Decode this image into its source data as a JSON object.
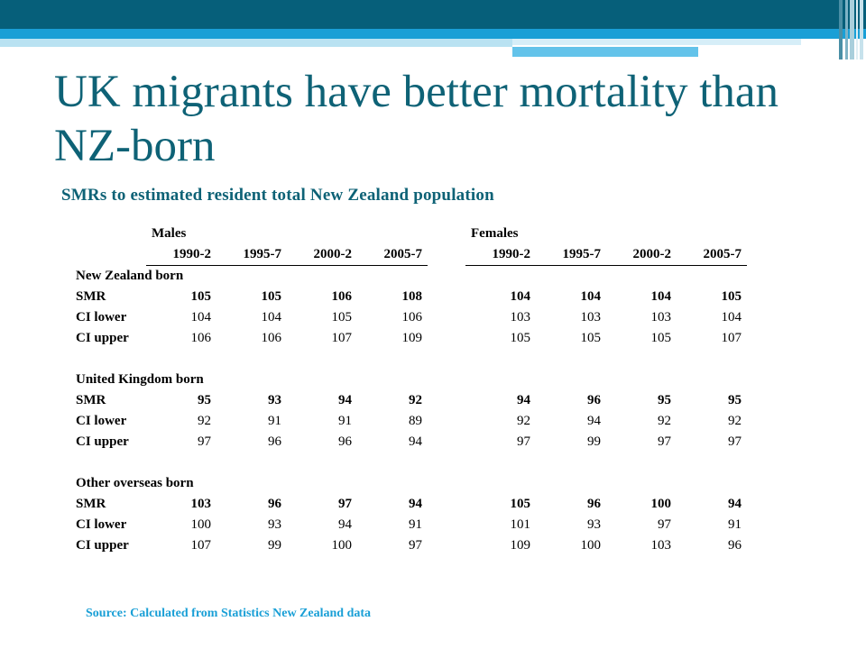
{
  "title": "UK migrants have better mortality than NZ-born",
  "subtitle": "SMRs to estimated resident total New Zealand population",
  "source": "Source: Calculated from Statistics New Zealand data",
  "table": {
    "groups": [
      "Males",
      "Females"
    ],
    "periods": [
      "1990-2",
      "1995-7",
      "2000-2",
      "2005-7"
    ],
    "sections": [
      {
        "name": "New Zealand born",
        "rows": [
          {
            "label": "SMR",
            "males": [
              "105",
              "105",
              "106",
              "108"
            ],
            "females": [
              "104",
              "104",
              "104",
              "105"
            ]
          },
          {
            "label": "CI lower",
            "males": [
              "104",
              "104",
              "105",
              "106"
            ],
            "females": [
              "103",
              "103",
              "103",
              "104"
            ]
          },
          {
            "label": "CI upper",
            "males": [
              "106",
              "106",
              "107",
              "109"
            ],
            "females": [
              "105",
              "105",
              "105",
              "107"
            ]
          }
        ]
      },
      {
        "name": "United Kingdom born",
        "rows": [
          {
            "label": "SMR",
            "males": [
              "95",
              "93",
              "94",
              "92"
            ],
            "females": [
              "94",
              "96",
              "95",
              "95"
            ]
          },
          {
            "label": "CI lower",
            "males": [
              "92",
              "91",
              "91",
              "89"
            ],
            "females": [
              "92",
              "94",
              "92",
              "92"
            ]
          },
          {
            "label": "CI upper",
            "males": [
              "97",
              "96",
              "96",
              "94"
            ],
            "females": [
              "97",
              "99",
              "97",
              "97"
            ]
          }
        ]
      },
      {
        "name": "Other overseas born",
        "rows": [
          {
            "label": "SMR",
            "males": [
              "103",
              "96",
              "97",
              "94"
            ],
            "females": [
              "105",
              "96",
              "100",
              "94"
            ]
          },
          {
            "label": "CI lower",
            "males": [
              "100",
              "93",
              "94",
              "91"
            ],
            "females": [
              "101",
              "93",
              "97",
              "91"
            ]
          },
          {
            "label": "CI upper",
            "males": [
              "107",
              "99",
              "100",
              "97"
            ],
            "females": [
              "109",
              "100",
              "103",
              "96"
            ]
          }
        ]
      }
    ]
  },
  "colors": {
    "header_dark": "#065f7a",
    "header_blue": "#199fd6",
    "header_pale": "#b9e2f2",
    "header_light": "#63c3ea",
    "title": "#0e6276",
    "source": "#199fd6"
  }
}
